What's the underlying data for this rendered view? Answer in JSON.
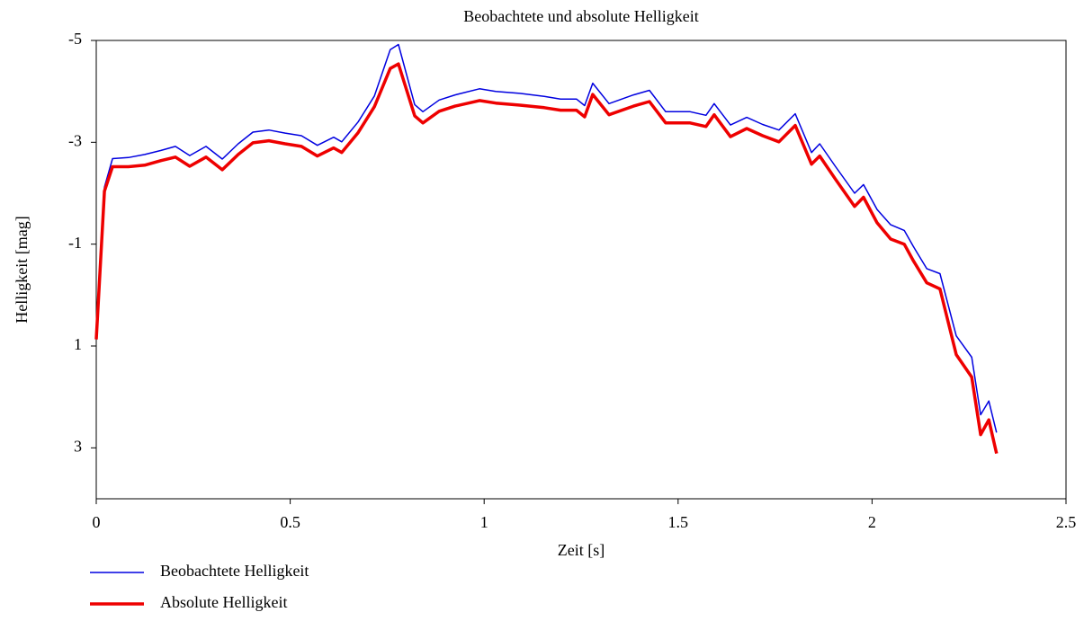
{
  "chart_data": {
    "type": "line",
    "title": "Beobachtete und absolute Helligkeit",
    "xlabel": "Zeit [s]",
    "ylabel": "Helligkeit [mag]",
    "xlim": [
      0,
      2.5
    ],
    "xticks": [
      0,
      0.5,
      1,
      1.5,
      2,
      2.5
    ],
    "ylim": [
      -5,
      4
    ],
    "yticks": [
      -5,
      -3,
      -1,
      1,
      3
    ],
    "y_inverted": true,
    "grid": false,
    "legend": "below",
    "x": [
      0,
      0.021,
      0.042,
      0.083,
      0.125,
      0.167,
      0.204,
      0.241,
      0.283,
      0.325,
      0.366,
      0.404,
      0.445,
      0.487,
      0.529,
      0.57,
      0.612,
      0.633,
      0.675,
      0.717,
      0.758,
      0.779,
      0.821,
      0.842,
      0.884,
      0.925,
      0.988,
      1.03,
      1.092,
      1.155,
      1.197,
      1.238,
      1.259,
      1.28,
      1.322,
      1.385,
      1.426,
      1.468,
      1.531,
      1.572,
      1.593,
      1.635,
      1.677,
      1.718,
      1.76,
      1.802,
      1.844,
      1.865,
      1.906,
      1.955,
      1.978,
      2.013,
      2.048,
      2.083,
      2.106,
      2.141,
      2.175,
      2.217,
      2.257,
      2.28,
      2.301,
      2.321
    ],
    "series": [
      {
        "name": "Beobachtete Helligkeit",
        "color": "#0000e0",
        "values": [
          0.87,
          -2.12,
          -2.68,
          -2.7,
          -2.76,
          -2.84,
          -2.92,
          -2.74,
          -2.92,
          -2.67,
          -2.97,
          -3.2,
          -3.24,
          -3.18,
          -3.13,
          -2.94,
          -3.1,
          -3.01,
          -3.4,
          -3.91,
          -4.82,
          -4.92,
          -3.74,
          -3.6,
          -3.83,
          -3.93,
          -4.05,
          -4.0,
          -3.96,
          -3.9,
          -3.85,
          -3.85,
          -3.72,
          -4.16,
          -3.76,
          -3.93,
          -4.02,
          -3.6,
          -3.6,
          -3.53,
          -3.76,
          -3.34,
          -3.49,
          -3.35,
          -3.24,
          -3.56,
          -2.8,
          -2.97,
          -2.52,
          -2.0,
          -2.17,
          -1.68,
          -1.38,
          -1.27,
          -0.96,
          -0.52,
          -0.42,
          0.8,
          1.22,
          2.35,
          2.08,
          2.7
        ]
      },
      {
        "name": "Absolute Helligkeit",
        "color": "#ee0000",
        "values": [
          0.87,
          -2.04,
          -2.52,
          -2.52,
          -2.55,
          -2.64,
          -2.71,
          -2.53,
          -2.71,
          -2.46,
          -2.76,
          -2.99,
          -3.03,
          -2.97,
          -2.92,
          -2.73,
          -2.89,
          -2.8,
          -3.19,
          -3.7,
          -4.45,
          -4.54,
          -3.52,
          -3.38,
          -3.61,
          -3.71,
          -3.82,
          -3.77,
          -3.73,
          -3.68,
          -3.63,
          -3.63,
          -3.5,
          -3.94,
          -3.54,
          -3.71,
          -3.8,
          -3.38,
          -3.38,
          -3.31,
          -3.54,
          -3.11,
          -3.27,
          -3.13,
          -3.01,
          -3.33,
          -2.57,
          -2.73,
          -2.27,
          -1.74,
          -1.92,
          -1.42,
          -1.1,
          -1.0,
          -0.68,
          -0.24,
          -0.12,
          1.17,
          1.61,
          2.74,
          2.45,
          3.11
        ]
      }
    ]
  }
}
